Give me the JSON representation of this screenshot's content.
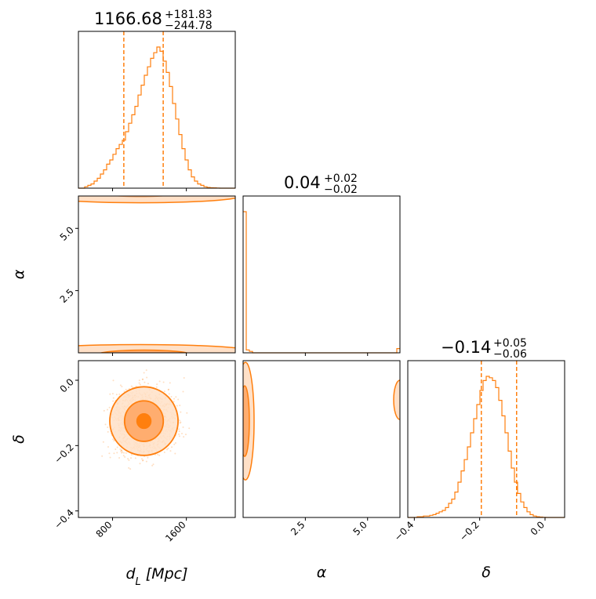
{
  "chart_data": {
    "type": "corner",
    "color": "#ff7f0e",
    "parameters": [
      {
        "name": "d_L",
        "label_main": "d",
        "label_sub": "L",
        "label_unit": " [Mpc]",
        "range": [
          430,
          2130
        ],
        "ticks": [
          800,
          1600
        ],
        "tick_labels": [
          "800",
          "1600"
        ]
      },
      {
        "name": "alpha",
        "label": "α",
        "range": [
          0.0,
          6.3
        ],
        "ticks": [
          2.5,
          5.0
        ],
        "tick_labels": [
          "2.5",
          "5.0"
        ]
      },
      {
        "name": "delta",
        "label": "δ",
        "range": [
          -0.42,
          0.06
        ],
        "ticks": [
          -0.4,
          -0.2,
          0.0
        ],
        "tick_labels": [
          "−0.4",
          "−0.2",
          "0.0"
        ]
      }
    ],
    "titles": [
      {
        "value": "1166.68",
        "plus": "+181.83",
        "minus": "−244.78"
      },
      {
        "value": "0.04",
        "plus": "+0.02",
        "minus": "−0.02"
      },
      {
        "value": "−0.14",
        "plus": "+0.05",
        "minus": "−0.06"
      }
    ],
    "quantile_lines": {
      "d_L": [
        922,
        1349
      ],
      "alpha": [],
      "delta": [
        -0.195,
        -0.087
      ]
    },
    "histograms": {
      "d_L": {
        "start": 430,
        "step": 34,
        "counts": [
          0.0,
          0.0,
          0.01,
          0.02,
          0.03,
          0.05,
          0.07,
          0.1,
          0.13,
          0.17,
          0.2,
          0.24,
          0.28,
          0.31,
          0.34,
          0.4,
          0.46,
          0.52,
          0.58,
          0.66,
          0.73,
          0.8,
          0.86,
          0.92,
          0.96,
          1.0,
          0.97,
          0.9,
          0.82,
          0.72,
          0.6,
          0.49,
          0.38,
          0.28,
          0.2,
          0.13,
          0.08,
          0.05,
          0.03,
          0.02,
          0.01,
          0.005,
          0.003,
          0.002,
          0.001,
          0,
          0,
          0,
          0,
          0
        ]
      },
      "alpha": {
        "start": 0.0,
        "step": 0.126,
        "counts": [
          1.0,
          0.02,
          0.01,
          0,
          0,
          0,
          0,
          0,
          0,
          0,
          0,
          0,
          0,
          0,
          0,
          0,
          0,
          0,
          0,
          0,
          0,
          0,
          0,
          0,
          0,
          0,
          0,
          0,
          0,
          0,
          0,
          0,
          0,
          0,
          0,
          0,
          0,
          0,
          0,
          0,
          0,
          0,
          0,
          0,
          0,
          0,
          0,
          0,
          0,
          0.03
        ]
      },
      "delta": {
        "start": -0.42,
        "step": 0.0096,
        "counts": [
          0.0,
          0.0,
          0.0,
          0.005,
          0.005,
          0.01,
          0.01,
          0.015,
          0.02,
          0.03,
          0.04,
          0.05,
          0.07,
          0.1,
          0.13,
          0.18,
          0.25,
          0.33,
          0.41,
          0.5,
          0.6,
          0.7,
          0.8,
          0.9,
          0.97,
          1.0,
          0.99,
          0.97,
          0.92,
          0.83,
          0.72,
          0.6,
          0.47,
          0.35,
          0.25,
          0.17,
          0.11,
          0.07,
          0.04,
          0.02,
          0.01,
          0.005,
          0.003,
          0.001,
          0,
          0,
          0,
          0,
          0,
          0
        ]
      }
    },
    "contours_2d": {
      "dL_delta": {
        "center": [
          1140,
          -0.125
        ],
        "levels": [
          {
            "rx": 75,
            "ry": 0.022,
            "fill": "#ff7f0e"
          },
          {
            "rx": 210,
            "ry": 0.062,
            "fill": "#ffad6f"
          },
          {
            "rx": 370,
            "ry": 0.105,
            "fill": "#ffe0c7"
          }
        ]
      },
      "dL_alpha": {
        "center_alpha": 0.08,
        "edge_alpha": 6.25
      }
    }
  }
}
